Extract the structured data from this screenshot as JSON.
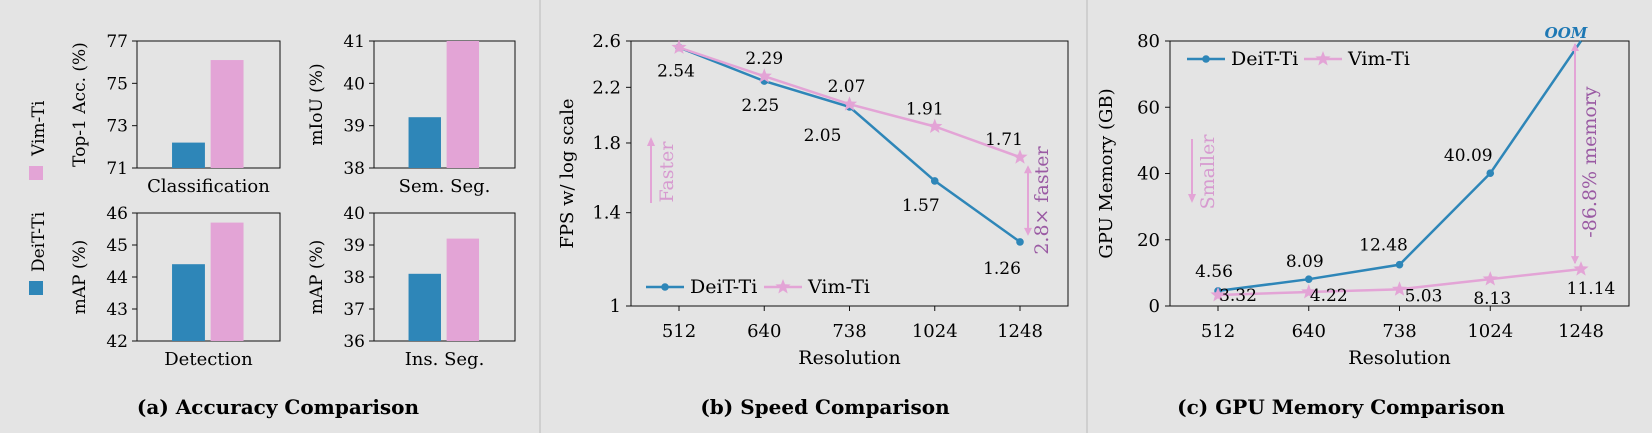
{
  "colors": {
    "deit": "#2e86b8",
    "vim": "#e3a4d6",
    "vim_text": "#d79bd0",
    "annot_purple": "#9a5aa3",
    "oom_blue": "#1e78b4",
    "background": "#e4e4e4"
  },
  "panel_a": {
    "caption": "(a) Accuracy Comparison",
    "legend": [
      "DeiT-Ti",
      "Vim-Ti"
    ]
  },
  "panel_b": {
    "caption": "(b) Speed Comparison",
    "annotations": {
      "faster_arrow": "Faster",
      "speedup": "2.8× faster"
    }
  },
  "panel_c": {
    "caption": "(c) GPU Memory Comparison",
    "annotations": {
      "smaller_arrow": "Smaller",
      "reduction": "-86.8% memory",
      "oom": "OOM"
    }
  },
  "chart_data": [
    {
      "type": "bar",
      "categories": [
        "Classification"
      ],
      "series": [
        {
          "name": "DeiT-Ti",
          "values": [
            72.2
          ]
        },
        {
          "name": "Vim-Ti",
          "values": [
            76.1
          ]
        }
      ],
      "ylabel": "Top-1 Acc. (%)",
      "ylim": [
        71,
        77
      ],
      "yticks": [
        71,
        73,
        75,
        77
      ]
    },
    {
      "type": "bar",
      "categories": [
        "Sem. Seg."
      ],
      "series": [
        {
          "name": "DeiT-Ti",
          "values": [
            39.2
          ]
        },
        {
          "name": "Vim-Ti",
          "values": [
            41.0
          ]
        }
      ],
      "ylabel": "mIoU (%)",
      "ylim": [
        38,
        41
      ],
      "yticks": [
        38,
        39,
        40,
        41
      ]
    },
    {
      "type": "bar",
      "categories": [
        "Detection"
      ],
      "series": [
        {
          "name": "DeiT-Ti",
          "values": [
            44.4
          ]
        },
        {
          "name": "Vim-Ti",
          "values": [
            45.7
          ]
        }
      ],
      "ylabel": "mAP (%)",
      "ylim": [
        42,
        46
      ],
      "yticks": [
        42,
        43,
        44,
        45,
        46
      ]
    },
    {
      "type": "bar",
      "categories": [
        "Ins. Seg."
      ],
      "series": [
        {
          "name": "DeiT-Ti",
          "values": [
            38.1
          ]
        },
        {
          "name": "Vim-Ti",
          "values": [
            39.2
          ]
        }
      ],
      "ylabel": "mAP (%)",
      "ylim": [
        36,
        40
      ],
      "yticks": [
        36,
        37,
        38,
        39,
        40
      ]
    },
    {
      "type": "line",
      "x": [
        "512",
        "640",
        "738",
        "1024",
        "1248"
      ],
      "series": [
        {
          "name": "DeiT-Ti",
          "values": [
            2.54,
            2.25,
            2.05,
            1.57,
            1.26
          ]
        },
        {
          "name": "Vim-Ti",
          "values": [
            2.54,
            2.29,
            2.07,
            1.91,
            1.71
          ]
        }
      ],
      "point_labels": {
        "DeiT-Ti": [
          "2.54",
          "2.25",
          "2.05",
          "1.57",
          "1.26"
        ],
        "Vim-Ti": [
          "",
          "2.29",
          "2.07",
          "1.91",
          "1.71"
        ]
      },
      "xlabel": "Resolution",
      "ylabel": "FPS w/ log scale",
      "ylim": [
        1,
        2.6
      ],
      "yticks": [
        "1",
        "1.4",
        "1.8",
        "2.2",
        "2.6"
      ],
      "legend": "bottom-left",
      "grid": false
    },
    {
      "type": "line",
      "x": [
        "512",
        "640",
        "738",
        "1024",
        "1248"
      ],
      "series": [
        {
          "name": "DeiT-Ti",
          "values": [
            4.56,
            8.09,
            12.48,
            40.09,
            80
          ]
        },
        {
          "name": "Vim-Ti",
          "values": [
            3.32,
            4.22,
            5.03,
            8.13,
            11.14
          ]
        }
      ],
      "point_labels": {
        "DeiT-Ti": [
          "4.56",
          "8.09",
          "12.48",
          "40.09",
          ""
        ],
        "Vim-Ti": [
          "3.32",
          "4.22",
          "5.03",
          "8.13",
          "11.14"
        ]
      },
      "xlabel": "Resolution",
      "ylabel": "GPU Memory (GB)",
      "ylim": [
        0,
        80
      ],
      "yticks": [
        "0",
        "20",
        "40",
        "60",
        "80"
      ],
      "legend": "top-left",
      "grid": false
    }
  ]
}
